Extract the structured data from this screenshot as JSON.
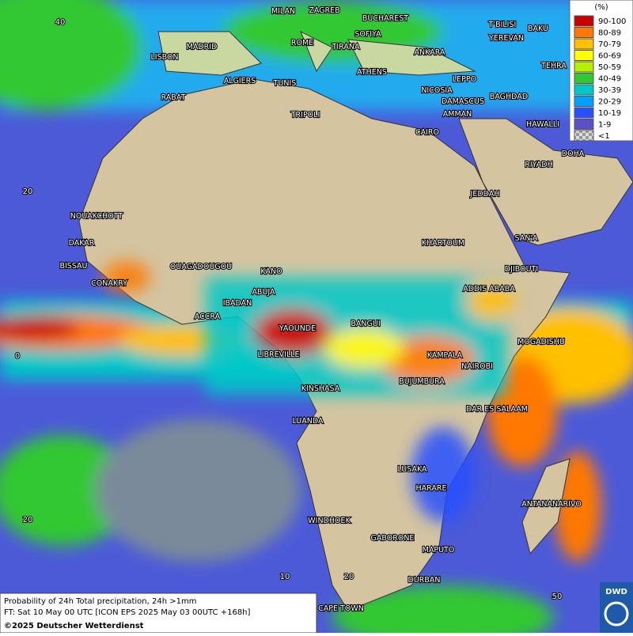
{
  "legend": {
    "unit": "(%)",
    "items": [
      {
        "label": "90-100",
        "color": "#c80000"
      },
      {
        "label": "80-89",
        "color": "#ff7800"
      },
      {
        "label": "70-79",
        "color": "#ffc000"
      },
      {
        "label": "60-69",
        "color": "#ffff00"
      },
      {
        "label": "50-59",
        "color": "#b4f000"
      },
      {
        "label": "40-49",
        "color": "#32c832"
      },
      {
        "label": "30-39",
        "color": "#00c8c8"
      },
      {
        "label": "20-29",
        "color": "#00a0ff"
      },
      {
        "label": "10-19",
        "color": "#2850ff"
      },
      {
        "label": "1-9",
        "color": "#5a50c8"
      },
      {
        "label": "<1",
        "color": "#b4b4b4"
      }
    ]
  },
  "cities": [
    "MILAN",
    "ZAGREB",
    "BUCHAREST",
    "MADRID",
    "ROME",
    "SOFIYA",
    "TIRANA",
    "ANKARA",
    "LISBON",
    "T'BILISI",
    "BAKU",
    "YEREVAN",
    "TEHRA",
    "ALGIERS",
    "TUNIS",
    "ATHENS",
    "NICOSIA",
    "LEPPO",
    "BAGHDAD",
    "RABAT",
    "TRIPOLI",
    "DAMASCUS",
    "AMMAN",
    "HAWALLI",
    "CAIRO",
    "DOHA",
    "RIYADH",
    "JEDDAH",
    "NOUAKCHOTT",
    "DAKAR",
    "SAN'A",
    "KHARTOUM",
    "BISSAU",
    "OUAGADOUGOU",
    "KANO",
    "DJIBOUTI",
    "CONAKRY",
    "ABUJA",
    "ADDIS ABABA",
    "IBADAN",
    "ACCRA",
    "BANGUI",
    "YAOUNDE",
    "MOGADISHU",
    "LIBREVILLE",
    "KAMPALA",
    "NAIROBI",
    "BUJUMBURA",
    "KINSHASA",
    "DAR ES SALAAM",
    "LUANDA",
    "LUSAKA",
    "HARARE",
    "ANTANANARIVO",
    "WINDHOEK",
    "GABORONE",
    "MAPUTO",
    "DURBAN",
    "CAPE TOWN"
  ],
  "grid_labels": [
    "40",
    "20",
    "0",
    "20",
    "10",
    "20",
    "50"
  ],
  "caption": {
    "line1": "Probability of 24h Total precipitation, 24h >1mm",
    "line2": "FT: Sat 10 May 00 UTC [ICON EPS 2025 May 03 00UTC +168h]",
    "copyright": "©2025 Deutscher Wetterdienst"
  },
  "logo": "DWD"
}
